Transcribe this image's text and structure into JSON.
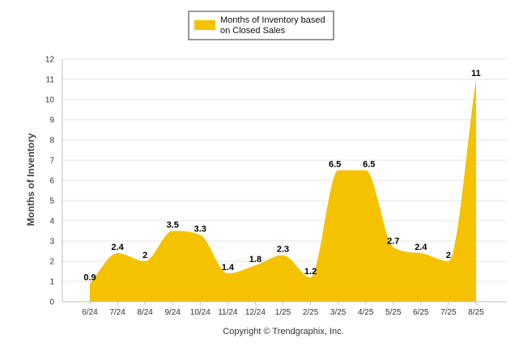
{
  "legend": {
    "label_line1": "Months of Inventory based",
    "label_line2": "on Closed Sales"
  },
  "footer": {
    "copyright": "Copyright © Trendgraphix, Inc."
  },
  "colors": {
    "series": "#F5C200",
    "grid": "#E4E4E4",
    "axis": "#BFBFBF",
    "legend_border": "#333333"
  },
  "chart_data": {
    "type": "area",
    "title": "",
    "xlabel": "",
    "ylabel": "Months of Inventory",
    "ylim": [
      0,
      12
    ],
    "yticks": [
      "0",
      "1",
      "2",
      "3",
      "4",
      "5",
      "6",
      "7",
      "8",
      "9",
      "10",
      "11",
      "12"
    ],
    "grid": true,
    "legend_position": "top-center",
    "categories": [
      "6/24",
      "7/24",
      "8/24",
      "9/24",
      "10/24",
      "11/24",
      "12/24",
      "1/25",
      "2/25",
      "3/25",
      "4/25",
      "5/25",
      "6/25",
      "7/25",
      "8/25"
    ],
    "series": [
      {
        "name": "Months of Inventory based on Closed Sales",
        "values": [
          0.9,
          2.4,
          2,
          3.5,
          3.3,
          1.4,
          1.8,
          2.3,
          1.2,
          6.5,
          6.5,
          2.7,
          2.4,
          2,
          11
        ],
        "labels": [
          "0.9",
          "2.4",
          "2",
          "3.5",
          "3.3",
          "1.4",
          "1.8",
          "2.3",
          "1.2",
          "6.5",
          "6.5",
          "2.7",
          "2.4",
          "2",
          "11"
        ]
      }
    ]
  }
}
